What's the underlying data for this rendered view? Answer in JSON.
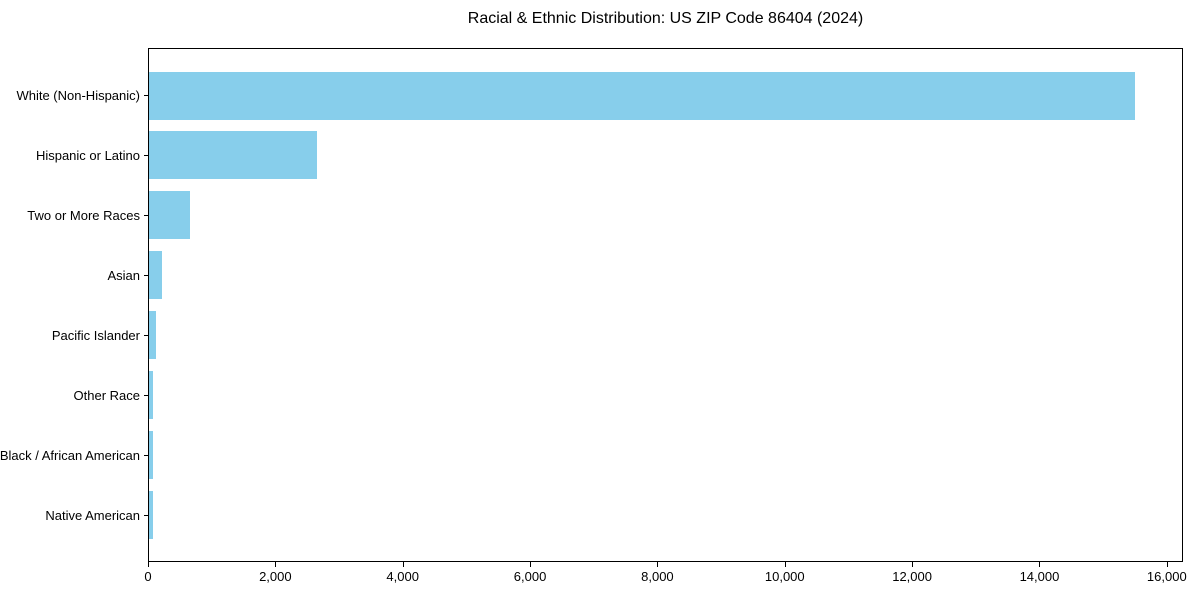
{
  "chart_data": {
    "type": "bar",
    "orientation": "horizontal",
    "title": "Racial & Ethnic Distribution: US ZIP Code 86404 (2024)",
    "categories": [
      "White (Non-Hispanic)",
      "Hispanic or Latino",
      "Two or More Races",
      "Asian",
      "Pacific Islander",
      "Other Race",
      "Black / African American",
      "Native American"
    ],
    "values": [
      15480,
      2640,
      650,
      205,
      115,
      70,
      60,
      55
    ],
    "xlabel": "",
    "ylabel": "",
    "xlim": [
      0,
      16254
    ],
    "xticks": [
      0,
      2000,
      4000,
      6000,
      8000,
      10000,
      12000,
      14000,
      16000
    ],
    "xtick_labels": [
      "0",
      "2,000",
      "4,000",
      "6,000",
      "8,000",
      "10,000",
      "12,000",
      "14,000",
      "16,000"
    ],
    "bar_color": "#87CEEB",
    "frame_color": "#000000",
    "background_color": "#ffffff",
    "grid": false,
    "legend": null
  }
}
